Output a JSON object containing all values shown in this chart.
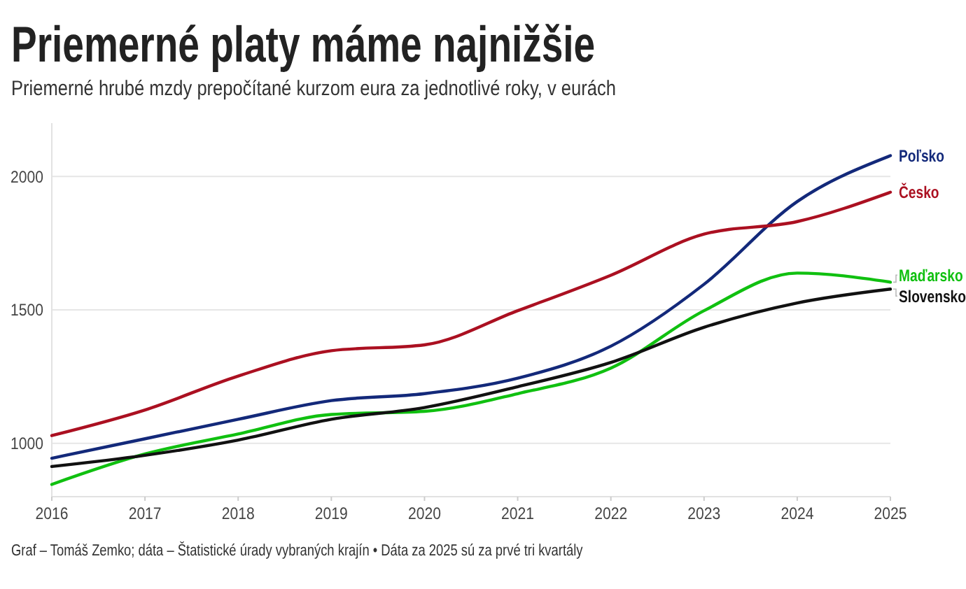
{
  "chart_data": {
    "type": "line",
    "title": "Priemerné platy máme najnižšie",
    "subtitle": "Priemerné hrubé mzdy prepočítané kurzom eura za jednotlivé roky, v eurách",
    "annotations": [
      "Graf – Tomáš Zemko; dáta – Štatistické úrady vybraných krajín • Dáta za 2025 sú za prvé tri kvartály"
    ],
    "x": [
      2016,
      2017,
      2018,
      2019,
      2020,
      2021,
      2022,
      2023,
      2024,
      2025
    ],
    "xlim": [
      2016,
      2025
    ],
    "xticks": [
      2016,
      2017,
      2018,
      2019,
      2020,
      2021,
      2022,
      2023,
      2024,
      2025
    ],
    "ylim": [
      800,
      2200
    ],
    "yticks": [
      1000,
      1500,
      2000
    ],
    "grid": "y",
    "series": [
      {
        "name": "Poľsko",
        "color": "#13297a",
        "values": [
          944,
          1017,
          1090,
          1160,
          1186,
          1244,
          1364,
          1596,
          1906,
          2078
        ]
      },
      {
        "name": "Česko",
        "color": "#ab1021",
        "values": [
          1029,
          1125,
          1252,
          1347,
          1369,
          1497,
          1630,
          1784,
          1831,
          1941
        ]
      },
      {
        "name": "Maďarsko",
        "color": "#10c010",
        "values": [
          846,
          960,
          1035,
          1108,
          1120,
          1186,
          1282,
          1497,
          1638,
          1604
        ]
      },
      {
        "name": "Slovensko",
        "color": "#111111",
        "values": [
          913,
          955,
          1012,
          1090,
          1134,
          1212,
          1303,
          1435,
          1526,
          1578
        ]
      }
    ]
  }
}
